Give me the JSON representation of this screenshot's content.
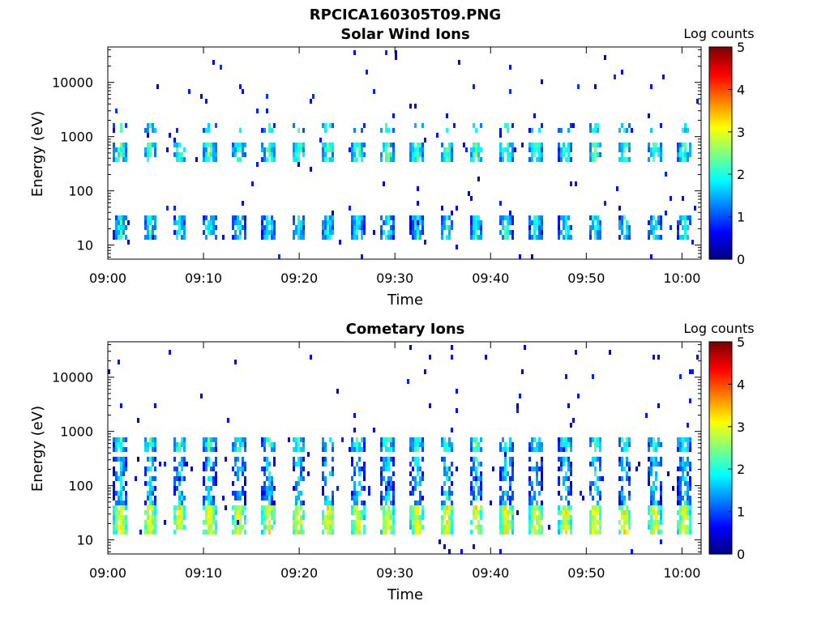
{
  "figure": {
    "suptitle": "RPCICA160305T09.PNG"
  },
  "chart_data": [
    {
      "type": "heatmap",
      "title": "Solar Wind Ions",
      "xlabel": "Time",
      "ylabel": "Energy (eV)",
      "x_ticks": [
        "09:00",
        "09:10",
        "09:20",
        "09:30",
        "09:40",
        "09:50",
        "10:00"
      ],
      "x_tick_minutes": [
        0,
        10,
        20,
        30,
        40,
        50,
        60
      ],
      "xlim_minutes": [
        0,
        62
      ],
      "y_scale": "log",
      "y_ticks": [
        10,
        100,
        1000,
        10000
      ],
      "y_tick_labels": [
        "10",
        "100",
        "1000",
        "10000"
      ],
      "ylim": [
        5.5,
        45000
      ],
      "colorbar": {
        "label": "Log counts",
        "min": 0,
        "max": 5,
        "ticks": [
          "0",
          "1",
          "2",
          "3",
          "4",
          "5"
        ],
        "colormap": "jet"
      },
      "sweep_period_minutes": 3.1,
      "sweep_start_minutes": 0.5,
      "bands": [
        {
          "name": "proton",
          "energy_min": 12,
          "energy_max": 38,
          "log_counts": 1.3
        },
        {
          "name": "alpha",
          "energy_min": 350,
          "energy_max": 800,
          "log_counts": 1.6
        },
        {
          "name": "upper",
          "energy_min": 1100,
          "energy_max": 1900,
          "log_counts": 1.4
        }
      ],
      "background_log_counts": 0.3
    },
    {
      "type": "heatmap",
      "title": "Cometary Ions",
      "xlabel": "Time",
      "ylabel": "Energy (eV)",
      "x_ticks": [
        "09:00",
        "09:10",
        "09:20",
        "09:30",
        "09:40",
        "09:50",
        "10:00"
      ],
      "x_tick_minutes": [
        0,
        10,
        20,
        30,
        40,
        50,
        60
      ],
      "xlim_minutes": [
        0,
        62
      ],
      "y_scale": "log",
      "y_ticks": [
        10,
        100,
        1000,
        10000
      ],
      "y_tick_labels": [
        "10",
        "100",
        "1000",
        "10000"
      ],
      "ylim": [
        5.5,
        45000
      ],
      "colorbar": {
        "label": "Log counts",
        "min": 0,
        "max": 5,
        "ticks": [
          "0",
          "1",
          "2",
          "3",
          "4",
          "5"
        ],
        "colormap": "jet"
      },
      "sweep_period_minutes": 3.1,
      "sweep_start_minutes": 0.5,
      "bands": [
        {
          "name": "low",
          "energy_min": 12,
          "energy_max": 45,
          "log_counts": 2.4
        },
        {
          "name": "mid",
          "energy_min": 45,
          "energy_max": 350,
          "log_counts": 1.1
        },
        {
          "name": "high",
          "energy_min": 400,
          "energy_max": 800,
          "log_counts": 1.5
        }
      ],
      "background_log_counts": 0.2
    }
  ]
}
